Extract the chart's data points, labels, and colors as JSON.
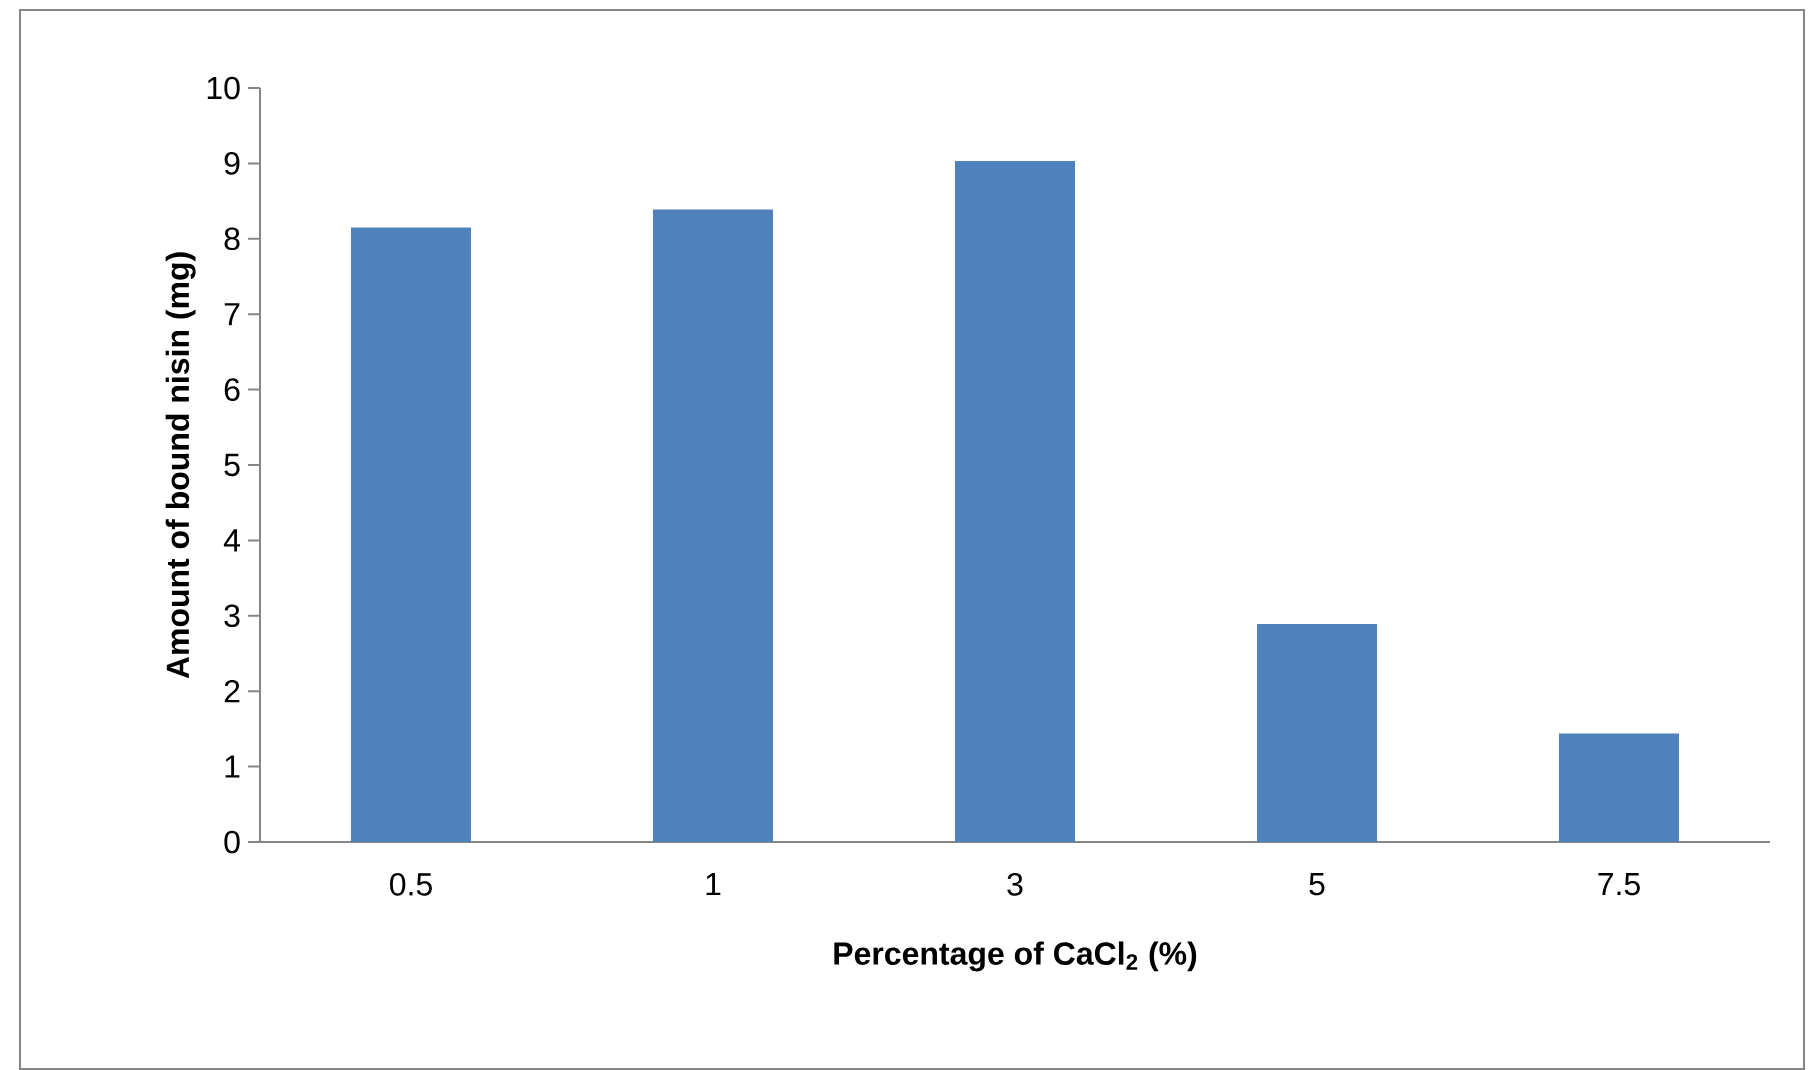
{
  "chart_data": {
    "type": "bar",
    "xlabel": "Percentage of CaCl$_{2}$ (%)",
    "ylabel": "Amount of bound nisin (mg)",
    "categories": [
      "0.5",
      "1",
      "3",
      "5",
      "7.5"
    ],
    "values": [
      8.15,
      8.39,
      9.03,
      2.89,
      1.44
    ],
    "color": "#4f81bd",
    "ylim": [
      0,
      10
    ],
    "yticks": [
      0,
      1,
      2,
      3,
      4,
      5,
      6,
      7,
      8,
      9,
      10
    ],
    "grid": false
  }
}
